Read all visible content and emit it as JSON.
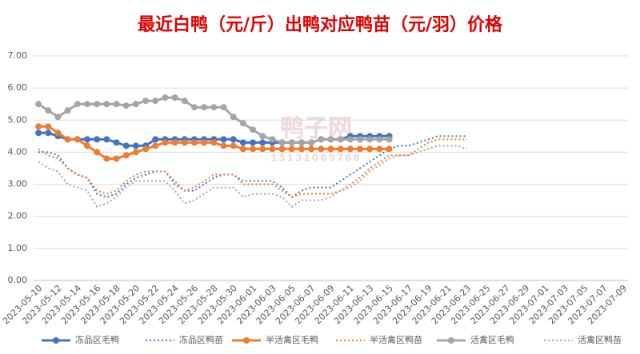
{
  "chart_data": {
    "type": "line",
    "title": "最近白鸭（元/斤）出鸭对应鸭苗（元/羽）价格",
    "watermark": [
      "鸭子网",
      "15131069768"
    ],
    "categories": [
      "2023-05-10",
      null,
      "2023-05-12",
      null,
      "2023-05-14",
      null,
      "2023-05-16",
      null,
      "2023-05-18",
      null,
      "2023-05-20",
      null,
      "2023-05-22",
      null,
      "2023-05-24",
      null,
      "2023-05-26",
      null,
      "2023-05-28",
      null,
      "2023-05-30",
      null,
      "2023-06-01",
      null,
      "2023-06-03",
      null,
      "2023-06-05",
      null,
      "2023-06-07",
      null,
      "2023-06-09",
      null,
      "2023-06-11",
      null,
      "2023-06-13",
      null,
      "2023-06-15",
      null,
      "2023-06-17",
      null,
      "2023-06-19",
      null,
      "2023-06-21",
      null,
      "2023-06-23",
      null,
      "2023-06-25",
      null,
      "2023-06-27",
      null,
      "2023-06-29",
      null,
      "2023-07-01",
      null,
      "2023-07-03",
      null,
      "2023-07-05",
      null,
      "2023-07-07",
      null,
      "2023-07-09"
    ],
    "ylim": [
      0,
      7
    ],
    "yticks": [
      {
        "value": 0,
        "label": "0.00"
      },
      {
        "value": 1,
        "label": "1.00"
      },
      {
        "value": 2,
        "label": "2.00"
      },
      {
        "value": 3,
        "label": "3.00"
      },
      {
        "value": 4,
        "label": "4.00"
      },
      {
        "value": 5,
        "label": "5.00"
      },
      {
        "value": 6,
        "label": "6.00"
      },
      {
        "value": 7,
        "label": "7.00"
      }
    ],
    "grid": true,
    "legend": "bottom",
    "series": [
      {
        "name": "冻品区毛鸭",
        "color": "#4472c4",
        "dash": false,
        "marker": true,
        "values": [
          4.6,
          4.6,
          4.5,
          4.4,
          4.4,
          4.4,
          4.4,
          4.4,
          4.3,
          4.2,
          4.2,
          4.2,
          4.4,
          4.4,
          4.4,
          4.4,
          4.4,
          4.4,
          4.4,
          4.4,
          4.4,
          4.3,
          4.3,
          4.3,
          4.3,
          4.3,
          4.3,
          4.3,
          4.3,
          4.4,
          4.4,
          4.4,
          4.5,
          4.5,
          4.5,
          4.5,
          4.5,
          null,
          null,
          null,
          null,
          null,
          null,
          null,
          null,
          null,
          null,
          null,
          null,
          null,
          null,
          null,
          null,
          null,
          null,
          null,
          null,
          null,
          null,
          null,
          null
        ]
      },
      {
        "name": "冻品区鸭苗",
        "color": "#4472c4",
        "dash": true,
        "marker": false,
        "values": [
          4.0,
          4.0,
          3.9,
          3.5,
          3.3,
          3.2,
          2.7,
          2.6,
          2.7,
          3.0,
          3.2,
          3.3,
          3.4,
          3.4,
          3.0,
          2.8,
          2.8,
          3.0,
          3.2,
          3.3,
          3.3,
          3.1,
          3.1,
          3.1,
          3.1,
          2.9,
          2.6,
          2.8,
          2.9,
          2.9,
          2.9,
          3.1,
          3.3,
          3.5,
          3.7,
          3.9,
          4.1,
          4.2,
          4.2,
          4.3,
          4.4,
          4.5,
          4.5,
          4.5,
          4.5,
          null,
          null,
          null,
          null,
          null,
          null,
          null,
          null,
          null,
          null,
          null,
          null,
          null,
          null,
          null,
          null
        ]
      },
      {
        "name": "半活禽区毛鸭",
        "color": "#ed7d31",
        "dash": false,
        "marker": true,
        "values": [
          4.8,
          4.8,
          4.6,
          4.4,
          4.4,
          4.2,
          4.0,
          3.8,
          3.8,
          3.9,
          4.0,
          4.1,
          4.2,
          4.3,
          4.3,
          4.3,
          4.3,
          4.3,
          4.3,
          4.2,
          4.2,
          4.1,
          4.1,
          4.1,
          4.1,
          4.1,
          4.1,
          4.1,
          4.1,
          4.1,
          4.1,
          4.1,
          4.1,
          4.1,
          4.1,
          4.1,
          4.1,
          null,
          null,
          null,
          null,
          null,
          null,
          null,
          null,
          null,
          null,
          null,
          null,
          null,
          null,
          null,
          null,
          null,
          null,
          null,
          null,
          null,
          null,
          null,
          null
        ]
      },
      {
        "name": "半活禽区鸭苗",
        "color": "#ed7d31",
        "dash": true,
        "marker": false,
        "values": [
          4.1,
          3.9,
          3.8,
          3.5,
          3.3,
          3.2,
          2.8,
          2.7,
          2.8,
          3.1,
          3.3,
          3.4,
          3.4,
          3.4,
          3.1,
          2.8,
          2.9,
          3.1,
          3.3,
          3.3,
          3.3,
          3.0,
          3.0,
          3.0,
          3.0,
          2.8,
          2.6,
          2.7,
          2.7,
          2.7,
          2.7,
          2.8,
          3.0,
          3.2,
          3.5,
          3.7,
          3.9,
          3.9,
          3.9,
          4.1,
          4.3,
          4.4,
          4.4,
          4.4,
          4.4,
          null,
          null,
          null,
          null,
          null,
          null,
          null,
          null,
          null,
          null,
          null,
          null,
          null,
          null,
          null,
          null
        ]
      },
      {
        "name": "活禽区毛鸭",
        "color": "#a5a5a5",
        "dash": false,
        "marker": true,
        "values": [
          5.5,
          5.3,
          5.1,
          5.3,
          5.5,
          5.5,
          5.5,
          5.5,
          5.5,
          5.45,
          5.5,
          5.6,
          5.6,
          5.7,
          5.7,
          5.6,
          5.4,
          5.4,
          5.4,
          5.4,
          5.1,
          4.9,
          4.7,
          4.5,
          4.4,
          4.3,
          4.3,
          4.3,
          4.3,
          4.4,
          4.4,
          4.4,
          4.4,
          4.4,
          4.4,
          4.4,
          4.4,
          null,
          null,
          null,
          null,
          null,
          null,
          null,
          null,
          null,
          null,
          null,
          null,
          null,
          null,
          null,
          null,
          null,
          null,
          null,
          null,
          null,
          null,
          null,
          null
        ]
      },
      {
        "name": "活禽区鸭苗",
        "color": "#a5a5a5",
        "dash": true,
        "marker": false,
        "values": [
          3.7,
          3.5,
          3.4,
          3.0,
          2.9,
          2.8,
          2.3,
          2.4,
          2.6,
          2.9,
          3.1,
          3.1,
          3.1,
          3.1,
          2.8,
          2.4,
          2.5,
          2.7,
          2.9,
          2.9,
          2.9,
          2.6,
          2.7,
          2.7,
          2.7,
          2.6,
          2.3,
          2.5,
          2.5,
          2.5,
          2.6,
          2.8,
          2.9,
          3.1,
          3.4,
          3.6,
          3.8,
          3.9,
          3.9,
          4.0,
          4.1,
          4.2,
          4.2,
          4.2,
          4.1,
          null,
          null,
          null,
          null,
          null,
          null,
          null,
          null,
          null,
          null,
          null,
          null,
          null,
          null,
          null,
          null
        ]
      }
    ]
  }
}
